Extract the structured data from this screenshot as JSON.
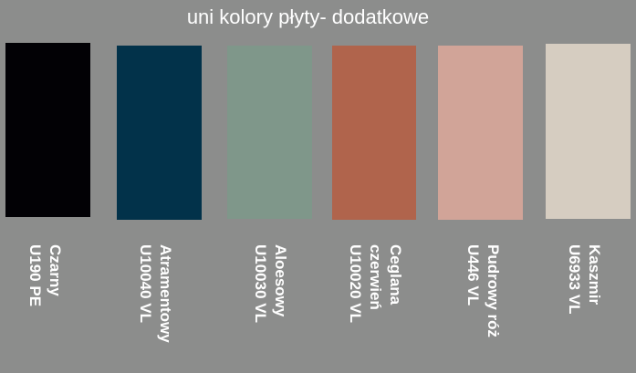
{
  "title": "uni kolory płyty- dodatkowe",
  "swatches": [
    {
      "name": "Czarny",
      "code": "U190 PE",
      "color": "#020105"
    },
    {
      "name": "Atramentowy",
      "code": "U10040 VL",
      "color": "#02324a"
    },
    {
      "name": "Aloesowy",
      "code": "U10030 VL",
      "color": "#7f978a"
    },
    {
      "name": "Ceglana czerwień",
      "name_line1": "Ceglana",
      "name_line2": "czerwień",
      "code": "U10020 VL",
      "color": "#b0644c"
    },
    {
      "name": "Pudrowy róż",
      "code": "U446 VL",
      "color": "#d1a498"
    },
    {
      "name": "Kaszmir",
      "code": "U6933 VL",
      "color": "#d6cdc1"
    }
  ]
}
